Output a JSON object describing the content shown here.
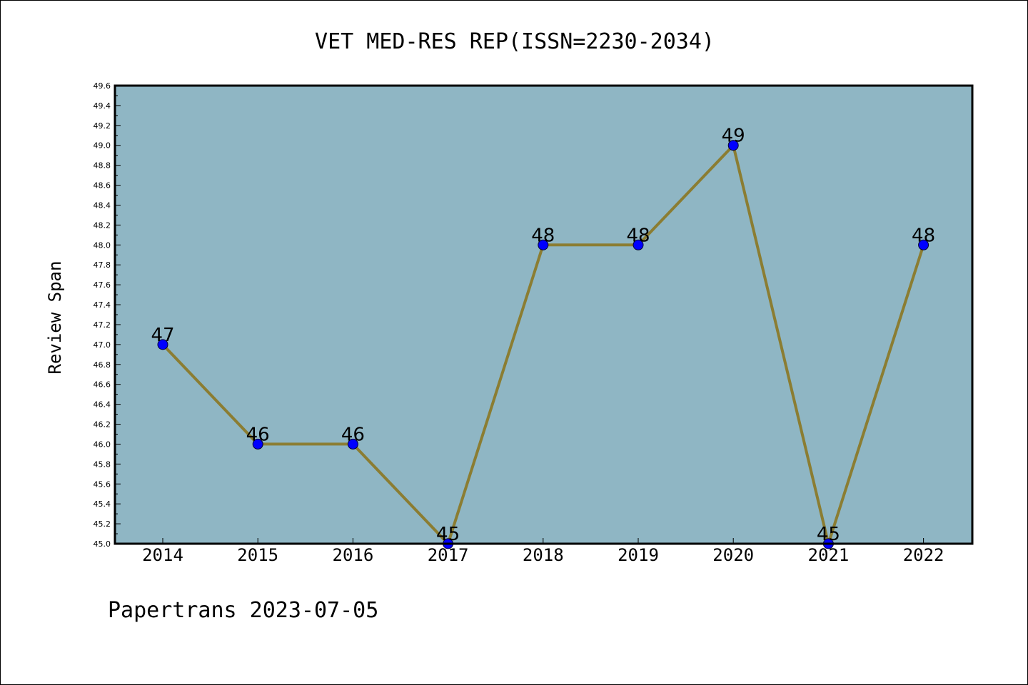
{
  "chart_data": {
    "type": "line",
    "title": "VET MED-RES REP(ISSN=2230-2034)",
    "xlabel": "",
    "ylabel": "Review Span",
    "footer": "Papertrans 2023-07-05",
    "categories": [
      "2014",
      "2015",
      "2016",
      "2017",
      "2018",
      "2019",
      "2020",
      "2021",
      "2022"
    ],
    "values": [
      47,
      46,
      46,
      45,
      48,
      48,
      49,
      45,
      48
    ],
    "data_labels": [
      "47",
      "46",
      "46",
      "45",
      "48",
      "48",
      "49",
      "45",
      "48"
    ],
    "ylim": [
      45.0,
      49.6
    ],
    "yticks": [
      "45.0",
      "45.2",
      "45.4",
      "45.6",
      "45.8",
      "46.0",
      "46.2",
      "46.4",
      "46.6",
      "46.8",
      "47.0",
      "47.2",
      "47.4",
      "47.6",
      "47.8",
      "48.0",
      "48.2",
      "48.4",
      "48.6",
      "48.8",
      "49.0",
      "49.2",
      "49.4",
      "49.6"
    ],
    "grid": false,
    "legend": "none",
    "colors": {
      "plot_background": "#8fb6c4",
      "line": "#8b7d32",
      "marker": "#0000ff",
      "frame": "#000000"
    }
  }
}
